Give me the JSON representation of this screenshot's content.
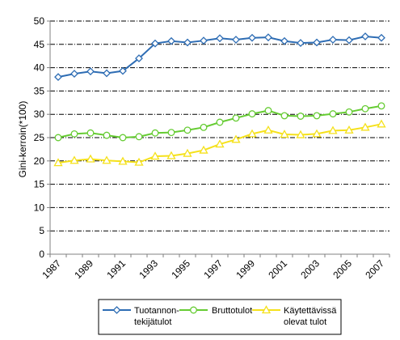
{
  "chart_data": {
    "type": "line",
    "title": "",
    "xlabel": "",
    "ylabel": "Gini-kerroin(*100)",
    "ylim": [
      0,
      50
    ],
    "yticks": [
      0,
      5,
      10,
      15,
      20,
      25,
      30,
      35,
      40,
      45,
      50
    ],
    "x": [
      1987,
      1988,
      1989,
      1990,
      1991,
      1992,
      1993,
      1994,
      1995,
      1996,
      1997,
      1998,
      1999,
      2000,
      2001,
      2002,
      2003,
      2004,
      2005,
      2006,
      2007
    ],
    "xtick_labels": [
      "1987",
      "1989",
      "1991",
      "1993",
      "1995",
      "1997",
      "1999",
      "2001",
      "2003",
      "2005",
      "2007"
    ],
    "grid": "horizontal dash-dot",
    "legend_position": "bottom",
    "series": [
      {
        "name_lines": [
          "Tuotannon-",
          "tekijätulot"
        ],
        "color": "#2E6DB4",
        "marker": "diamond",
        "values": [
          38.0,
          38.7,
          39.2,
          38.8,
          39.3,
          42.0,
          45.2,
          45.7,
          45.4,
          45.8,
          46.3,
          46.0,
          46.4,
          46.5,
          45.7,
          45.3,
          45.4,
          46.0,
          45.9,
          46.7,
          46.4
        ]
      },
      {
        "name_lines": [
          "Bruttotulot"
        ],
        "color": "#66CC33",
        "marker": "circle",
        "values": [
          25.0,
          25.8,
          26.0,
          25.5,
          25.0,
          25.2,
          26.0,
          26.1,
          26.6,
          27.2,
          28.3,
          29.2,
          30.1,
          30.8,
          29.7,
          29.6,
          29.7,
          30.1,
          30.5,
          31.2,
          31.8
        ]
      },
      {
        "name_lines": [
          "Käytettävissä",
          "olevat tulot"
        ],
        "color": "#F5E11B",
        "marker": "triangle",
        "values": [
          19.6,
          20.1,
          20.4,
          20.1,
          19.9,
          19.7,
          21.0,
          21.1,
          21.6,
          22.3,
          23.6,
          24.6,
          25.8,
          26.6,
          25.7,
          25.6,
          25.8,
          26.5,
          26.6,
          27.2,
          27.9
        ]
      }
    ]
  }
}
